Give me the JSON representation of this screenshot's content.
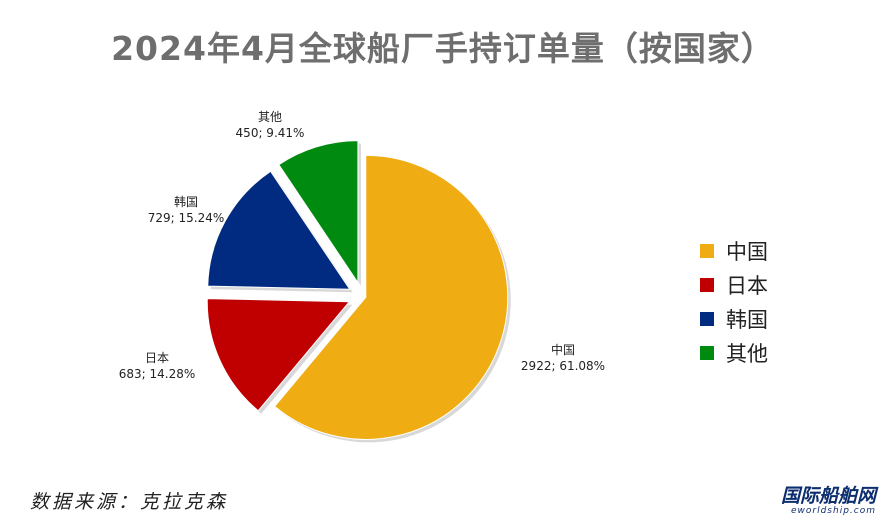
{
  "chart_data": {
    "type": "pie",
    "title": "2024年4月全球船厂手持订单量（按国家）",
    "slices": [
      {
        "name": "中国",
        "value": 2922,
        "percent": "61.08%",
        "label": "2922; 61.08%",
        "color": "#f0ac13"
      },
      {
        "name": "日本",
        "value": 683,
        "percent": "14.28%",
        "label": "683; 14.28%",
        "color": "#c00000"
      },
      {
        "name": "韩国",
        "value": 729,
        "percent": "15.24%",
        "label": "729; 15.24%",
        "color": "#002b80"
      },
      {
        "name": "其他",
        "value": 450,
        "percent": "9.41%",
        "label": "450; 9.41%",
        "color": "#008a10"
      }
    ],
    "legend_position": "right",
    "exploded": true
  },
  "footer": {
    "source": "数据来源：克拉克森",
    "logo_main": "国际船舶网",
    "logo_sub": "eworldship.com"
  }
}
